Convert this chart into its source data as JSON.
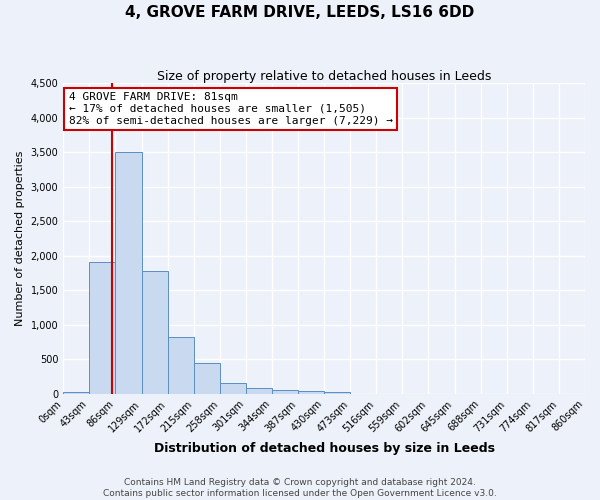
{
  "title": "4, GROVE FARM DRIVE, LEEDS, LS16 6DD",
  "subtitle": "Size of property relative to detached houses in Leeds",
  "xlabel": "Distribution of detached houses by size in Leeds",
  "ylabel": "Number of detached properties",
  "bin_labels": [
    "0sqm",
    "43sqm",
    "86sqm",
    "129sqm",
    "172sqm",
    "215sqm",
    "258sqm",
    "301sqm",
    "344sqm",
    "387sqm",
    "430sqm",
    "473sqm",
    "516sqm",
    "559sqm",
    "602sqm",
    "645sqm",
    "688sqm",
    "731sqm",
    "774sqm",
    "817sqm",
    "860sqm"
  ],
  "bar_heights": [
    30,
    1910,
    3500,
    1780,
    830,
    450,
    160,
    90,
    50,
    35,
    25,
    0,
    0,
    0,
    0,
    0,
    0,
    0,
    0,
    0
  ],
  "bar_color": "#c9d9f0",
  "bar_edgecolor": "#5b8ec4",
  "vline_x": 81,
  "vline_color": "#cc0000",
  "ylim": [
    0,
    4500
  ],
  "yticks": [
    0,
    500,
    1000,
    1500,
    2000,
    2500,
    3000,
    3500,
    4000,
    4500
  ],
  "annotation_title": "4 GROVE FARM DRIVE: 81sqm",
  "annotation_line1": "← 17% of detached houses are smaller (1,505)",
  "annotation_line2": "82% of semi-detached houses are larger (7,229) →",
  "annotation_box_color": "#ffffff",
  "annotation_box_edgecolor": "#cc0000",
  "bg_color": "#edf2fa",
  "grid_color": "#ffffff",
  "footer1": "Contains HM Land Registry data © Crown copyright and database right 2024.",
  "footer2": "Contains public sector information licensed under the Open Government Licence v3.0.",
  "bin_width": 43,
  "title_fontsize": 11,
  "subtitle_fontsize": 9,
  "xlabel_fontsize": 9,
  "ylabel_fontsize": 8,
  "tick_fontsize": 7,
  "annot_fontsize": 8,
  "footer_fontsize": 6.5
}
